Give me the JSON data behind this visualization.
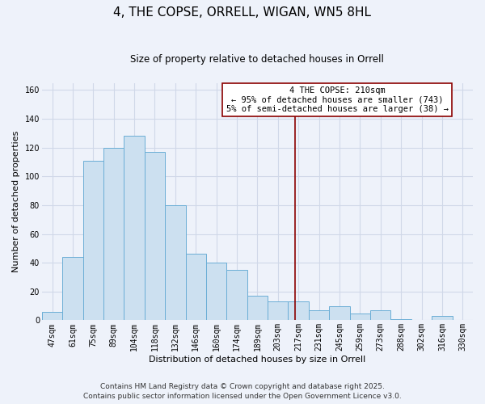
{
  "title": "4, THE COPSE, ORRELL, WIGAN, WN5 8HL",
  "subtitle": "Size of property relative to detached houses in Orrell",
  "xlabel": "Distribution of detached houses by size in Orrell",
  "ylabel": "Number of detached properties",
  "categories": [
    "47sqm",
    "61sqm",
    "75sqm",
    "89sqm",
    "104sqm",
    "118sqm",
    "132sqm",
    "146sqm",
    "160sqm",
    "174sqm",
    "189sqm",
    "203sqm",
    "217sqm",
    "231sqm",
    "245sqm",
    "259sqm",
    "273sqm",
    "288sqm",
    "302sqm",
    "316sqm",
    "330sqm"
  ],
  "values": [
    6,
    44,
    111,
    120,
    128,
    117,
    80,
    46,
    40,
    35,
    17,
    13,
    13,
    7,
    10,
    5,
    7,
    1,
    0,
    3,
    0
  ],
  "bar_color": "#cce0f0",
  "bar_edge_color": "#6baed6",
  "ylim": [
    0,
    165
  ],
  "yticks": [
    0,
    20,
    40,
    60,
    80,
    100,
    120,
    140,
    160
  ],
  "vline_x_index": 11.82,
  "vline_color": "#8b0000",
  "annotation_title": "4 THE COPSE: 210sqm",
  "annotation_line1": "← 95% of detached houses are smaller (743)",
  "annotation_line2": "5% of semi-detached houses are larger (38) →",
  "footer_line1": "Contains HM Land Registry data © Crown copyright and database right 2025.",
  "footer_line2": "Contains public sector information licensed under the Open Government Licence v3.0.",
  "background_color": "#eef2fa",
  "grid_color": "#d0d8e8",
  "title_fontsize": 11,
  "subtitle_fontsize": 8.5,
  "axis_label_fontsize": 8,
  "tick_fontsize": 7,
  "annotation_fontsize": 7.5,
  "footer_fontsize": 6.5
}
